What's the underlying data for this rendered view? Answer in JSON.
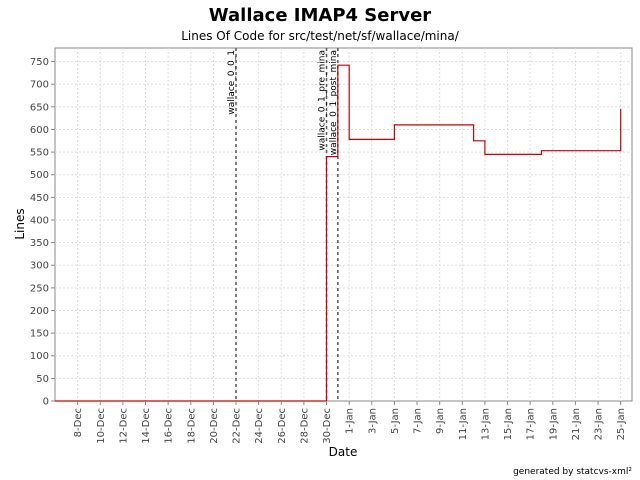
{
  "page": {
    "title": "Wallace IMAP4 Server",
    "subtitle": "Lines Of Code for src/test/net/sf/wallace/mina/",
    "footer": "generated by statcvs-xml²"
  },
  "chart_data": {
    "type": "line",
    "title": "Wallace IMAP4 Server",
    "subtitle": "Lines Of Code for src/test/net/sf/wallace/mina/",
    "xlabel": "Date",
    "ylabel": "Lines",
    "ylim": [
      0,
      780
    ],
    "yticks": [
      0,
      50,
      100,
      150,
      200,
      250,
      300,
      350,
      400,
      450,
      500,
      550,
      600,
      650,
      700,
      750
    ],
    "xlim": [
      "Dec 6",
      "Jan 26"
    ],
    "xticks": [
      "8-Dec",
      "10-Dec",
      "12-Dec",
      "14-Dec",
      "16-Dec",
      "18-Dec",
      "20-Dec",
      "22-Dec",
      "24-Dec",
      "26-Dec",
      "28-Dec",
      "30-Dec",
      "1-Jan",
      "3-Jan",
      "5-Jan",
      "7-Jan",
      "9-Jan",
      "11-Jan",
      "13-Jan",
      "15-Jan",
      "17-Jan",
      "19-Jan",
      "21-Jan",
      "23-Jan",
      "25-Jan"
    ],
    "grid": true,
    "line_style": "step",
    "line_color": "#cc0000",
    "series": [
      {
        "points": [
          {
            "date": "Dec 6",
            "y": 0
          },
          {
            "date": "Dec 30",
            "y": 0
          },
          {
            "date": "Dec 30",
            "y": 540
          },
          {
            "date": "Dec 31",
            "y": 540
          },
          {
            "date": "Dec 31",
            "y": 545
          },
          {
            "date": "Dec 31",
            "y": 742
          },
          {
            "date": "Jan 1",
            "y": 742
          },
          {
            "date": "Jan 1",
            "y": 578
          },
          {
            "date": "Jan 5",
            "y": 578
          },
          {
            "date": "Jan 5",
            "y": 610
          },
          {
            "date": "Jan 12",
            "y": 610
          },
          {
            "date": "Jan 12",
            "y": 575
          },
          {
            "date": "Jan 13",
            "y": 575
          },
          {
            "date": "Jan 13",
            "y": 543
          },
          {
            "date": "Jan 13",
            "y": 545
          },
          {
            "date": "Jan 18",
            "y": 545
          },
          {
            "date": "Jan 18",
            "y": 553
          },
          {
            "date": "Jan 25",
            "y": 553
          },
          {
            "date": "Jan 25",
            "y": 645
          }
        ]
      }
    ],
    "markers": [
      {
        "label": "wallace_0_0_1",
        "date": "Dec 22"
      },
      {
        "label": "wallace_0_1_pre_mina",
        "date": "Dec 30"
      },
      {
        "label": "wallace_0_1_post_mina",
        "date": "Dec 31"
      }
    ]
  }
}
